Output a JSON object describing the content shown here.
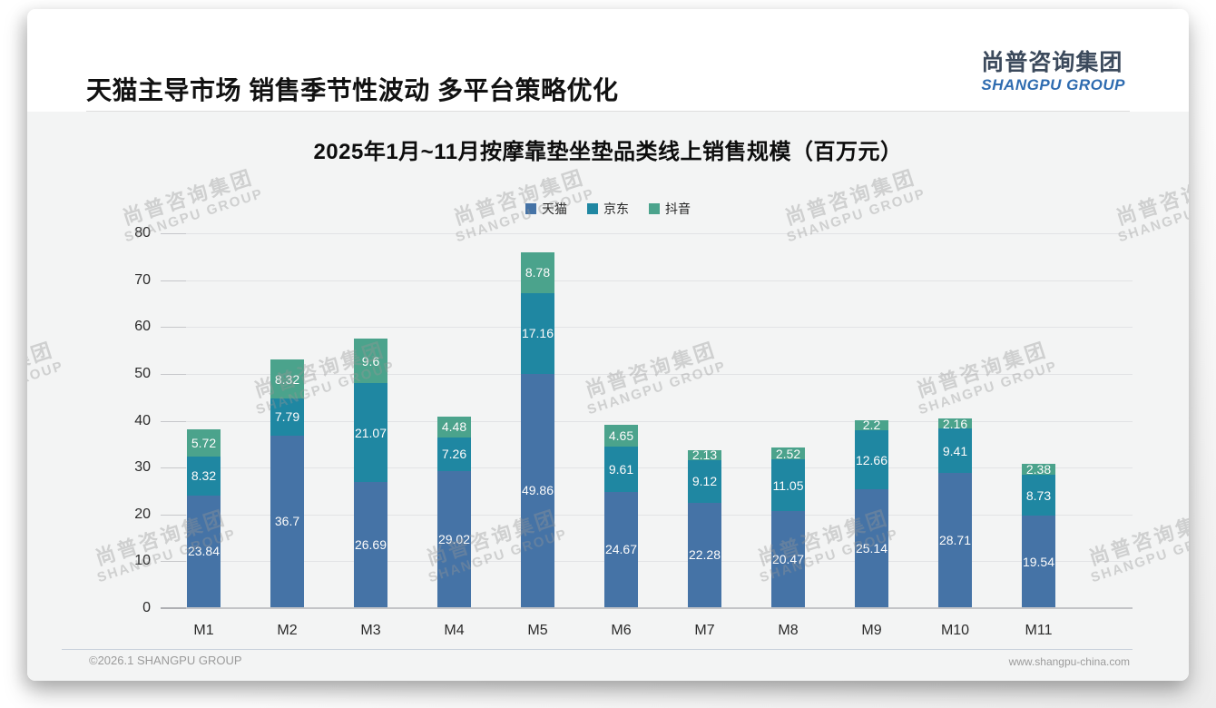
{
  "page": {
    "title": "天猫主导市场 销售季节性波动 多平台策略优化",
    "logo": {
      "cn": "尚普咨询集团",
      "en": "SHANGPU GROUP"
    },
    "watermark": {
      "line1": "尚普咨询集团",
      "line2": "SHANGPU GROUP"
    },
    "footer": {
      "copyright": "©2026.1 SHANGPU GROUP",
      "website": "www.shangpu-china.com"
    }
  },
  "colors": {
    "logo_cn": "#3c4a5c",
    "logo_en": "#2f6cb0",
    "tianmao_blue": "#4573a6",
    "jingdong_teal": "#1f87a2",
    "douyin_green": "#4ba38c",
    "chart_background": "#f3f4f4"
  },
  "chart_data": {
    "type": "bar",
    "stacked": true,
    "title": "2025年1月~11月按摩靠垫坐垫品类线上销售规模（百万元）",
    "categories": [
      "M1",
      "M2",
      "M3",
      "M4",
      "M5",
      "M6",
      "M7",
      "M8",
      "M9",
      "M10",
      "M11"
    ],
    "series": [
      {
        "name": "天猫",
        "color": "#4573a6",
        "values": [
          23.84,
          36.7,
          26.69,
          29.02,
          49.86,
          24.67,
          22.28,
          20.47,
          25.14,
          28.71,
          19.54
        ]
      },
      {
        "name": "京东",
        "color": "#1f87a2",
        "values": [
          8.32,
          7.79,
          21.07,
          7.26,
          17.16,
          9.61,
          9.12,
          11.05,
          12.66,
          9.41,
          8.73
        ]
      },
      {
        "name": "抖音",
        "color": "#4ba38c",
        "values": [
          5.72,
          8.32,
          9.6,
          4.48,
          8.78,
          4.65,
          2.13,
          2.52,
          2.2,
          2.16,
          2.38
        ]
      }
    ],
    "xlabel": "",
    "ylabel": "",
    "ylim": [
      0,
      80
    ],
    "ytick_step": 10,
    "grid": true,
    "legend_position": "top",
    "value_labels": "inside-white"
  }
}
